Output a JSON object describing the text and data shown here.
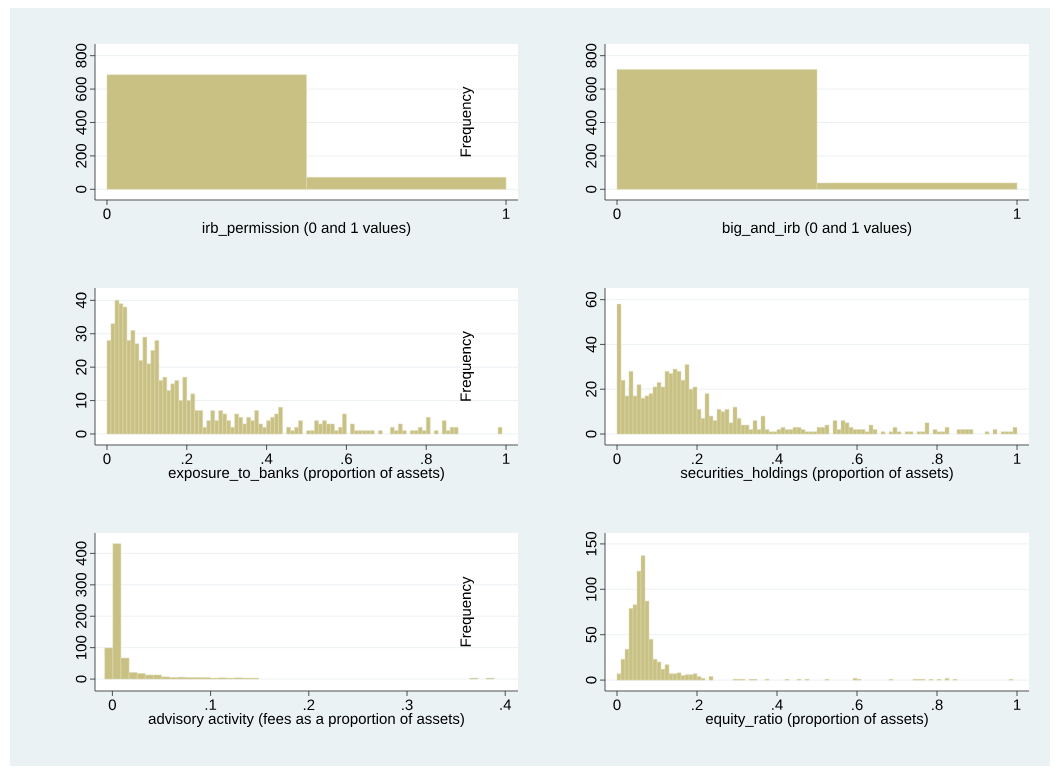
{
  "chart_data": [
    {
      "type": "histogram",
      "xlabel": "irb_permission (0 and 1 values)",
      "color": "#c9c184",
      "bins": [
        0,
        0.5,
        1
      ],
      "values": [
        686,
        72
      ],
      "xlim": [
        -0.03,
        1.03
      ],
      "ylim": [
        -64,
        870
      ],
      "xticks": [
        0,
        1
      ],
      "yticks": [
        0,
        200,
        400,
        600,
        800
      ],
      "grid": "y",
      "annotations": [
        "Frequency"
      ]
    },
    {
      "type": "histogram",
      "xlabel": "big_and_irb (0 and 1 values)",
      "color": "#c9c184",
      "bins": [
        0,
        0.5,
        1
      ],
      "values": [
        718,
        38
      ],
      "xlim": [
        -0.03,
        1.03
      ],
      "ylim": [
        -64,
        870
      ],
      "xticks": [
        0,
        1
      ],
      "yticks": [
        0,
        200,
        400,
        600,
        800
      ],
      "grid": "y"
    },
    {
      "type": "histogram",
      "xlabel": "exposure_to_banks (proportion of assets)",
      "color": "#c9c184",
      "bins": [
        0,
        0.01,
        0.02,
        0.03,
        0.04,
        0.05,
        0.06,
        0.07,
        0.08,
        0.09,
        0.1,
        0.11,
        0.12,
        0.13,
        0.14,
        0.15,
        0.16,
        0.17,
        0.18,
        0.19,
        0.2,
        0.21,
        0.22,
        0.23,
        0.24,
        0.25,
        0.26,
        0.27,
        0.28,
        0.29,
        0.3,
        0.31,
        0.32,
        0.33,
        0.34,
        0.35,
        0.36,
        0.37,
        0.38,
        0.39,
        0.4,
        0.41,
        0.42,
        0.43,
        0.44,
        0.45,
        0.46,
        0.47,
        0.48,
        0.49,
        0.5,
        0.51,
        0.52,
        0.53,
        0.54,
        0.55,
        0.56,
        0.57,
        0.58,
        0.59,
        0.6,
        0.61,
        0.62,
        0.63,
        0.64,
        0.65,
        0.66,
        0.67,
        0.68,
        0.69,
        0.7,
        0.71,
        0.72,
        0.73,
        0.74,
        0.75,
        0.76,
        0.77,
        0.78,
        0.79,
        0.8,
        0.81,
        0.82,
        0.83,
        0.84,
        0.85,
        0.86,
        0.87,
        0.88,
        0.89,
        0.9,
        0.91,
        0.92,
        0.93,
        0.94,
        0.95,
        0.96,
        0.97,
        0.98,
        0.99
      ],
      "values": [
        28,
        33,
        40,
        39,
        38,
        28,
        31,
        27,
        22,
        29,
        21,
        25,
        28,
        16,
        17,
        13,
        15,
        16,
        10,
        17,
        10,
        12,
        7,
        7,
        2,
        4,
        7,
        4,
        7,
        6,
        4,
        2,
        6,
        5,
        3,
        5,
        4,
        7,
        3,
        2,
        4,
        5,
        6,
        8,
        0,
        2,
        1,
        2,
        4,
        0,
        1,
        1,
        4,
        3,
        4,
        3,
        3,
        1,
        2,
        6,
        0,
        3,
        1,
        1,
        1,
        1,
        1,
        0,
        1,
        0,
        0,
        2,
        1,
        3,
        1,
        0,
        1,
        1,
        2,
        1,
        5,
        0,
        1,
        0,
        4,
        1,
        2,
        2,
        0,
        0,
        0,
        0,
        0,
        0,
        0,
        0,
        0,
        0,
        2
      ],
      "xlim": [
        -0.03,
        1.03
      ],
      "ylim": [
        -3.3,
        43.7
      ],
      "xticks": [
        0,
        {
          "value": 0.2,
          "label": ".2"
        },
        {
          "value": 0.4,
          "label": ".4"
        },
        {
          "value": 0.6,
          "label": ".6"
        },
        {
          "value": 0.8,
          "label": ".8"
        },
        1
      ],
      "yticks": [
        0,
        10,
        20,
        30,
        40
      ],
      "grid": "y",
      "annotations": [
        "Frequency"
      ]
    },
    {
      "type": "histogram",
      "xlabel": "securities_holdings (proportion of assets)",
      "color": "#c9c184",
      "bins": [
        0,
        0.01,
        0.02,
        0.03,
        0.04,
        0.05,
        0.06,
        0.07,
        0.08,
        0.09,
        0.1,
        0.11,
        0.12,
        0.13,
        0.14,
        0.15,
        0.16,
        0.17,
        0.18,
        0.19,
        0.2,
        0.21,
        0.22,
        0.23,
        0.24,
        0.25,
        0.26,
        0.27,
        0.28,
        0.29,
        0.3,
        0.31,
        0.32,
        0.33,
        0.34,
        0.35,
        0.36,
        0.37,
        0.38,
        0.39,
        0.4,
        0.41,
        0.42,
        0.43,
        0.44,
        0.45,
        0.46,
        0.47,
        0.48,
        0.49,
        0.5,
        0.51,
        0.52,
        0.53,
        0.54,
        0.55,
        0.56,
        0.57,
        0.58,
        0.59,
        0.6,
        0.61,
        0.62,
        0.63,
        0.64,
        0.65,
        0.66,
        0.67,
        0.68,
        0.69,
        0.7,
        0.71,
        0.72,
        0.73,
        0.74,
        0.75,
        0.76,
        0.77,
        0.78,
        0.79,
        0.8,
        0.81,
        0.82,
        0.83,
        0.84,
        0.85,
        0.86,
        0.87,
        0.88,
        0.89,
        0.9,
        0.91,
        0.92,
        0.93,
        0.94,
        0.95,
        0.96,
        0.97,
        0.98,
        0.99,
        1
      ],
      "values": [
        58,
        24,
        17,
        28,
        17,
        22,
        16,
        17,
        18,
        21,
        23,
        21,
        28,
        27,
        29,
        28,
        24,
        31,
        20,
        21,
        11,
        7,
        18,
        8,
        6,
        11,
        10,
        11,
        5,
        12,
        7,
        4,
        4,
        2,
        6,
        2,
        8,
        2,
        1,
        1,
        2,
        3,
        2,
        2,
        3,
        3,
        2,
        1,
        1,
        1,
        3,
        3,
        4,
        0,
        6,
        2,
        6,
        5,
        3,
        2,
        2,
        2,
        1,
        4,
        2,
        0,
        1,
        0,
        1,
        3,
        1,
        0,
        1,
        1,
        0,
        1,
        1,
        5,
        0,
        2,
        1,
        1,
        3,
        0,
        0,
        2,
        2,
        2,
        2,
        0,
        0,
        0,
        1,
        0,
        2,
        0,
        1,
        1,
        1,
        3
      ],
      "xlim": [
        -0.03,
        1.03
      ],
      "ylim": [
        -4.9,
        65.2
      ],
      "xticks": [
        0,
        {
          "value": 0.2,
          "label": ".2"
        },
        {
          "value": 0.4,
          "label": ".4"
        },
        {
          "value": 0.6,
          "label": ".6"
        },
        {
          "value": 0.8,
          "label": ".8"
        },
        1
      ],
      "yticks": [
        0,
        20,
        40,
        60
      ],
      "grid": "y"
    },
    {
      "type": "histogram",
      "xlabel": "advisory activity (fees as a proportion of assets)",
      "color": "#c9c184",
      "bins": [
        -0.0078,
        0.0005,
        0.0087,
        0.017,
        0.0252,
        0.0335,
        0.0418,
        0.05,
        0.0583,
        0.0665,
        0.0748,
        0.0831,
        0.0913,
        0.0996,
        0.1078,
        0.1161,
        0.1244,
        0.1326,
        0.1409,
        0.1491,
        0.1574,
        0.1657,
        0.1739,
        0.1822,
        0.1904,
        0.1987,
        0.207,
        0.2152,
        0.2235,
        0.2317,
        0.24,
        0.2483,
        0.2565,
        0.2648,
        0.273,
        0.2813,
        0.2896,
        0.2978,
        0.3061,
        0.3143,
        0.3226,
        0.3309,
        0.3391,
        0.3474,
        0.3556,
        0.3639,
        0.3722,
        0.3804,
        0.3887
      ],
      "values": [
        99,
        431,
        67,
        21,
        18,
        13,
        13,
        7,
        5,
        6,
        5,
        5,
        5,
        3,
        4,
        3,
        4,
        3,
        3,
        0,
        0,
        0,
        0,
        0,
        0,
        0,
        0,
        0,
        0,
        0,
        0,
        0,
        0,
        0,
        0,
        0,
        0,
        0,
        0,
        0,
        0,
        0,
        0,
        0,
        0,
        3,
        0,
        3
      ],
      "xlim": [
        -0.0177,
        0.413
      ],
      "ylim": [
        -38,
        465
      ],
      "xticks": [
        0,
        {
          "value": 0.1,
          "label": ".1"
        },
        {
          "value": 0.2,
          "label": ".2"
        },
        {
          "value": 0.3,
          "label": ".3"
        },
        {
          "value": 0.4,
          "label": ".4"
        }
      ],
      "yticks": [
        0,
        100,
        200,
        300,
        400
      ],
      "grid": "y",
      "annotations": [
        "Frequency"
      ]
    },
    {
      "type": "histogram",
      "xlabel": "equity_ratio (proportion of assets)",
      "color": "#c9c184",
      "bins": [
        0,
        0.01,
        0.02,
        0.03,
        0.04,
        0.05,
        0.06,
        0.07,
        0.08,
        0.09,
        0.1,
        0.11,
        0.12,
        0.13,
        0.14,
        0.15,
        0.16,
        0.17,
        0.18,
        0.19,
        0.2,
        0.21,
        0.22,
        0.23,
        0.24,
        0.25,
        0.26,
        0.27,
        0.28,
        0.29,
        0.3,
        0.31,
        0.32,
        0.33,
        0.34,
        0.35,
        0.36,
        0.37,
        0.38,
        0.39,
        0.4,
        0.41,
        0.42,
        0.43,
        0.44,
        0.45,
        0.46,
        0.47,
        0.48,
        0.49,
        0.5,
        0.51,
        0.52,
        0.53,
        0.54,
        0.55,
        0.56,
        0.57,
        0.58,
        0.59,
        0.6,
        0.61,
        0.62,
        0.63,
        0.64,
        0.65,
        0.66,
        0.67,
        0.68,
        0.69,
        0.7,
        0.71,
        0.72,
        0.73,
        0.74,
        0.75,
        0.76,
        0.77,
        0.78,
        0.79,
        0.8,
        0.81,
        0.82,
        0.83,
        0.84,
        0.85,
        0.86,
        0.87,
        0.88,
        0.89,
        0.9,
        0.91,
        0.92,
        0.93,
        0.94,
        0.95,
        0.96,
        0.97,
        0.98,
        0.99
      ],
      "values": [
        7,
        23,
        34,
        79,
        83,
        120,
        137,
        87,
        45,
        23,
        20,
        12,
        17,
        7,
        7,
        8,
        5,
        6,
        6,
        7,
        4,
        2,
        0,
        4,
        0,
        0,
        0,
        0,
        0,
        1,
        1,
        1,
        0,
        1,
        1,
        0,
        0,
        1,
        0,
        0,
        0,
        0,
        1,
        0,
        0,
        1,
        0,
        1,
        0,
        0,
        0,
        0,
        1,
        0,
        0,
        0,
        0,
        0,
        0,
        2,
        1,
        0,
        0,
        0,
        0,
        0,
        0,
        0,
        1,
        0,
        0,
        0,
        0,
        0,
        1,
        1,
        1,
        0,
        1,
        0,
        1,
        0,
        2,
        0,
        1,
        0,
        0,
        0,
        0,
        0,
        0,
        0,
        0,
        0,
        0,
        0,
        0,
        0,
        1
      ],
      "xlim": [
        -0.03,
        1.03
      ],
      "ylim": [
        -12,
        162
      ],
      "xticks": [
        0,
        {
          "value": 0.2,
          "label": ".2"
        },
        {
          "value": 0.4,
          "label": ".4"
        },
        {
          "value": 0.6,
          "label": ".6"
        },
        {
          "value": 0.8,
          "label": ".8"
        },
        1
      ],
      "yticks": [
        0,
        50,
        100,
        150
      ],
      "grid": "y"
    }
  ]
}
